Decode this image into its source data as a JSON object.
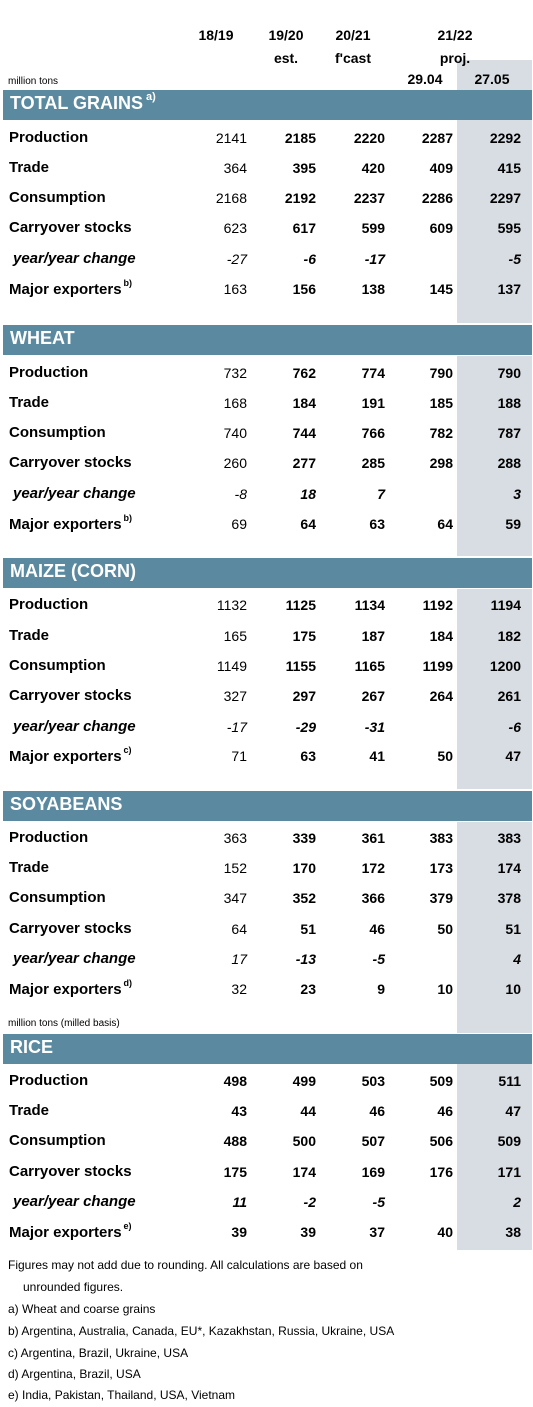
{
  "headers": {
    "col1": "18/19",
    "col2_line1": "19/20",
    "col2_line2": "est.",
    "col3_line1": "20/21",
    "col3_line2": "f'cast",
    "col45_line1": "21/22",
    "col45_line2": "proj.",
    "col4_date": "29.04",
    "col5_date": "27.05",
    "unit": "million tons",
    "rice_unit": "million tons (milled basis)"
  },
  "sections": [
    {
      "title": "TOTAL GRAINS",
      "sup": "a)",
      "rows": [
        {
          "label": "Production",
          "values": [
            "2141",
            "2185",
            "2220",
            "2287",
            "2292"
          ]
        },
        {
          "label": "Trade",
          "values": [
            "364",
            "395",
            "420",
            "409",
            "415"
          ]
        },
        {
          "label": "Consumption",
          "values": [
            "2168",
            "2192",
            "2237",
            "2286",
            "2297"
          ]
        },
        {
          "label": "Carryover stocks",
          "values": [
            "623",
            "617",
            "599",
            "609",
            "595"
          ]
        },
        {
          "label": "year/year change",
          "values": [
            "-27",
            "-6",
            "-17",
            "",
            "-5"
          ]
        },
        {
          "label": "Major exporters",
          "sup": "b)",
          "values": [
            "163",
            "156",
            "138",
            "145",
            "137"
          ]
        }
      ]
    },
    {
      "title": "WHEAT",
      "sup": "",
      "rows": [
        {
          "label": "Production",
          "values": [
            "732",
            "762",
            "774",
            "790",
            "790"
          ]
        },
        {
          "label": "Trade",
          "values": [
            "168",
            "184",
            "191",
            "185",
            "188"
          ]
        },
        {
          "label": "Consumption",
          "values": [
            "740",
            "744",
            "766",
            "782",
            "787"
          ]
        },
        {
          "label": "Carryover stocks",
          "values": [
            "260",
            "277",
            "285",
            "298",
            "288"
          ]
        },
        {
          "label": "year/year change",
          "values": [
            "-8",
            "18",
            "7",
            "",
            "3"
          ]
        },
        {
          "label": "Major exporters",
          "sup": "b)",
          "values": [
            "69",
            "64",
            "63",
            "64",
            "59"
          ]
        }
      ]
    },
    {
      "title": "MAIZE (CORN)",
      "sup": "",
      "rows": [
        {
          "label": "Production",
          "values": [
            "1132",
            "1125",
            "1134",
            "1192",
            "1194"
          ]
        },
        {
          "label": "Trade",
          "values": [
            "165",
            "175",
            "187",
            "184",
            "182"
          ]
        },
        {
          "label": "Consumption",
          "values": [
            "1149",
            "1155",
            "1165",
            "1199",
            "1200"
          ]
        },
        {
          "label": "Carryover stocks",
          "values": [
            "327",
            "297",
            "267",
            "264",
            "261"
          ]
        },
        {
          "label": "year/year change",
          "values": [
            "-17",
            "-29",
            "-31",
            "",
            "-6"
          ]
        },
        {
          "label": "Major exporters",
          "sup": "c)",
          "values": [
            "71",
            "63",
            "41",
            "50",
            "47"
          ]
        }
      ]
    },
    {
      "title": "SOYABEANS",
      "sup": "",
      "rows": [
        {
          "label": "Production",
          "values": [
            "363",
            "339",
            "361",
            "383",
            "383"
          ]
        },
        {
          "label": "Trade",
          "values": [
            "152",
            "170",
            "172",
            "173",
            "174"
          ]
        },
        {
          "label": "Consumption",
          "values": [
            "347",
            "352",
            "366",
            "379",
            "378"
          ]
        },
        {
          "label": "Carryover stocks",
          "values": [
            "64",
            "51",
            "46",
            "50",
            "51"
          ]
        },
        {
          "label": "year/year change",
          "values": [
            "17",
            "-13",
            "-5",
            "",
            "4"
          ]
        },
        {
          "label": "Major exporters",
          "sup": "d)",
          "values": [
            "32",
            "23",
            "9",
            "10",
            "10"
          ]
        }
      ]
    },
    {
      "title": "RICE",
      "sup": "",
      "rows": [
        {
          "label": "Production",
          "values": [
            "498",
            "499",
            "503",
            "509",
            "511"
          ]
        },
        {
          "label": "Trade",
          "values": [
            "43",
            "44",
            "46",
            "46",
            "47"
          ]
        },
        {
          "label": "Consumption",
          "values": [
            "488",
            "500",
            "507",
            "506",
            "509"
          ]
        },
        {
          "label": "Carryover stocks",
          "values": [
            "175",
            "174",
            "169",
            "176",
            "171"
          ]
        },
        {
          "label": "year/year change",
          "values": [
            "11",
            "-2",
            "-5",
            "",
            "2"
          ]
        },
        {
          "label": "Major exporters",
          "sup": "e)",
          "values": [
            "39",
            "39",
            "37",
            "40",
            "38"
          ]
        }
      ]
    }
  ],
  "footnotes": [
    "Figures may not add due to rounding. All calculations are based on",
    "unrounded figures.",
    "a) Wheat and coarse grains",
    "b) Argentina, Australia, Canada, EU*, Kazakhstan, Russia, Ukraine, USA",
    "c) Argentina, Brazil, Ukraine, USA",
    "d) Argentina, Brazil, USA",
    "e) India, Pakistan, Thailand, USA, Vietnam"
  ]
}
